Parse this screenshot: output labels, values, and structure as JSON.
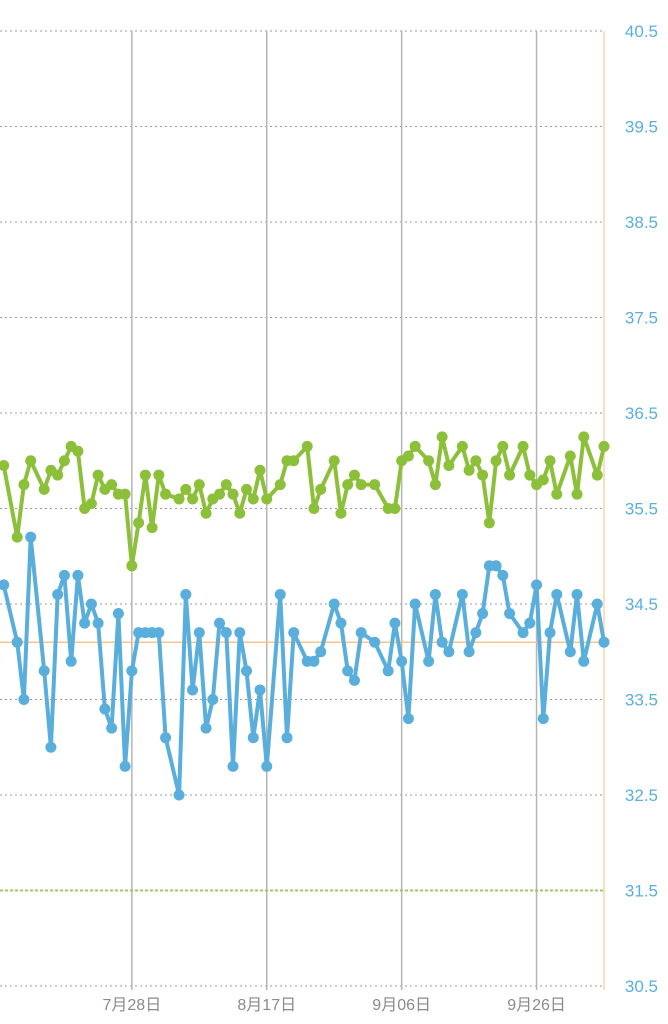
{
  "chart_data": {
    "type": "line",
    "title": "",
    "x_unit": "days relative to 7月28日",
    "xlim": [
      -19.55,
      70
    ],
    "ylim": [
      30.5,
      40.5
    ],
    "grid": true,
    "x_ticks": [
      {
        "day": 0,
        "label": "7月28日"
      },
      {
        "day": 20,
        "label": "8月17日"
      },
      {
        "day": 40,
        "label": "9月06日"
      },
      {
        "day": 60,
        "label": "9月26日"
      }
    ],
    "y_ticks": [
      "30.5",
      "31.5",
      "32.5",
      "33.5",
      "34.5",
      "35.5",
      "36.5",
      "37.5",
      "38.5",
      "39.5",
      "40.5"
    ],
    "reference_lines": [
      {
        "name": "blue-average",
        "value": 34.1,
        "color": "#f5c68a"
      },
      {
        "name": "green-baseline",
        "value": 31.5,
        "color": "#9ccc55"
      }
    ],
    "series": [
      {
        "name": "green",
        "color": "#8dc03a",
        "x": [
          -19,
          -17,
          -16,
          -15,
          -13,
          -12,
          -11,
          -10,
          -9,
          -8,
          -7,
          -6,
          -5,
          -4,
          -3,
          -2,
          -1,
          0,
          1,
          2,
          3,
          4,
          5,
          7,
          8,
          9,
          10,
          11,
          12,
          13,
          14,
          15,
          16,
          17,
          18,
          19,
          20,
          22,
          23,
          24,
          26,
          27,
          28,
          30,
          31,
          32,
          33,
          34,
          36,
          38,
          39,
          40,
          41,
          42,
          44,
          45,
          46,
          47,
          49,
          50,
          51,
          52,
          53,
          54,
          55,
          56,
          58,
          59,
          60,
          61,
          62,
          63,
          65,
          66,
          67,
          69,
          70
        ],
        "values": [
          35.95,
          35.2,
          35.75,
          36.0,
          35.7,
          35.9,
          35.85,
          36.0,
          36.15,
          36.1,
          35.5,
          35.55,
          35.85,
          35.7,
          35.75,
          35.65,
          35.65,
          34.9,
          35.35,
          35.85,
          35.3,
          35.85,
          35.65,
          35.6,
          35.7,
          35.6,
          35.75,
          35.45,
          35.6,
          35.65,
          35.75,
          35.65,
          35.45,
          35.7,
          35.6,
          35.9,
          35.6,
          35.75,
          36.0,
          36.0,
          36.15,
          35.5,
          35.7,
          36.0,
          35.45,
          35.75,
          35.85,
          35.75,
          35.75,
          35.5,
          35.5,
          36.0,
          36.05,
          36.15,
          36.0,
          35.75,
          36.25,
          35.95,
          36.15,
          35.9,
          36.0,
          35.85,
          35.35,
          36.0,
          36.15,
          35.85,
          36.15,
          35.85,
          35.75,
          35.8,
          36.0,
          35.65,
          36.05,
          35.65,
          36.25,
          35.85,
          36.15
        ]
      },
      {
        "name": "blue",
        "color": "#5aaedc",
        "x": [
          -19,
          -17,
          -16,
          -15,
          -13,
          -12,
          -11,
          -10,
          -9,
          -8,
          -7,
          -6,
          -5,
          -4,
          -3,
          -2,
          -1,
          0,
          1,
          2,
          3,
          4,
          5,
          7,
          8,
          9,
          10,
          11,
          12,
          13,
          14,
          15,
          16,
          17,
          18,
          19,
          20,
          22,
          23,
          24,
          26,
          27,
          28,
          30,
          31,
          32,
          33,
          34,
          36,
          38,
          39,
          40,
          41,
          42,
          44,
          45,
          46,
          47,
          49,
          50,
          51,
          52,
          53,
          54,
          55,
          56,
          58,
          59,
          60,
          61,
          62,
          63,
          65,
          66,
          67,
          69,
          70
        ],
        "values": [
          34.7,
          34.1,
          33.5,
          35.2,
          33.8,
          33.0,
          34.6,
          34.8,
          33.9,
          34.8,
          34.3,
          34.5,
          34.3,
          33.4,
          33.2,
          34.4,
          32.8,
          33.8,
          34.2,
          34.2,
          34.2,
          34.2,
          33.1,
          32.5,
          34.6,
          33.6,
          34.2,
          33.2,
          33.5,
          34.3,
          34.2,
          32.8,
          34.2,
          33.8,
          33.1,
          33.6,
          32.8,
          34.6,
          33.1,
          34.2,
          33.9,
          33.9,
          34.0,
          34.5,
          34.3,
          33.8,
          33.7,
          34.2,
          34.1,
          33.8,
          34.3,
          33.9,
          33.3,
          34.5,
          33.9,
          34.6,
          34.1,
          34.0,
          34.6,
          34.0,
          34.2,
          34.4,
          34.9,
          34.9,
          34.8,
          34.4,
          34.2,
          34.3,
          34.7,
          33.3,
          34.2,
          34.6,
          34.0,
          34.6,
          33.9,
          34.5,
          34.1
        ]
      }
    ]
  }
}
